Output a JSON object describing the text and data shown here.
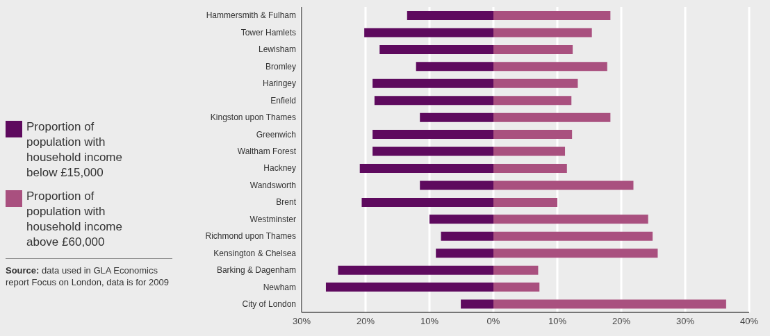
{
  "chart_data": {
    "type": "bar",
    "orientation": "horizontal",
    "stacked": true,
    "categories": [
      "Hammersmith & Fulham",
      "Tower Hamlets",
      "Lewisham",
      "Bromley",
      "Haringey",
      "Enfield",
      "Kingston upon Thames",
      "Greenwich",
      "Waltham Forest",
      "Hackney",
      "Wandsworth",
      "Brent",
      "Westminster",
      "Richmond upon Thames",
      "Kensington & Chelsea",
      "Barking & Dagenham",
      "Newham",
      "City of London"
    ],
    "series": [
      {
        "name": "Proportion of population with household income below £15,000",
        "color": "#5e0a5e",
        "values": [
          -13.5,
          -20.2,
          -17.8,
          -12.1,
          -18.9,
          -18.6,
          -11.5,
          -18.9,
          -18.9,
          -20.9,
          -11.5,
          -20.6,
          -10.0,
          -8.2,
          -9.0,
          -24.3,
          -26.2,
          -5.1
        ]
      },
      {
        "name": "Proportion of population with household income above £60,000",
        "color": "#a9507f",
        "values": [
          18.3,
          15.4,
          12.4,
          17.8,
          13.2,
          12.2,
          18.3,
          12.3,
          11.2,
          11.5,
          21.9,
          10.0,
          24.2,
          24.9,
          25.7,
          7.0,
          7.2,
          36.4
        ]
      }
    ],
    "xlim": [
      -30,
      40
    ],
    "xticks": [
      {
        "value": -30,
        "label": "30%"
      },
      {
        "value": -20,
        "label": "20%"
      },
      {
        "value": -10,
        "label": "10%"
      },
      {
        "value": 0,
        "label": "0%"
      },
      {
        "value": 10,
        "label": "10%"
      },
      {
        "value": 20,
        "label": "20%"
      },
      {
        "value": 30,
        "label": "30%"
      },
      {
        "value": 40,
        "label": "40%"
      }
    ],
    "grid": "x",
    "legend": "left",
    "annotations": [
      "Source: data used in GLA Economics report Focus on London, data is for 2009"
    ]
  }
}
